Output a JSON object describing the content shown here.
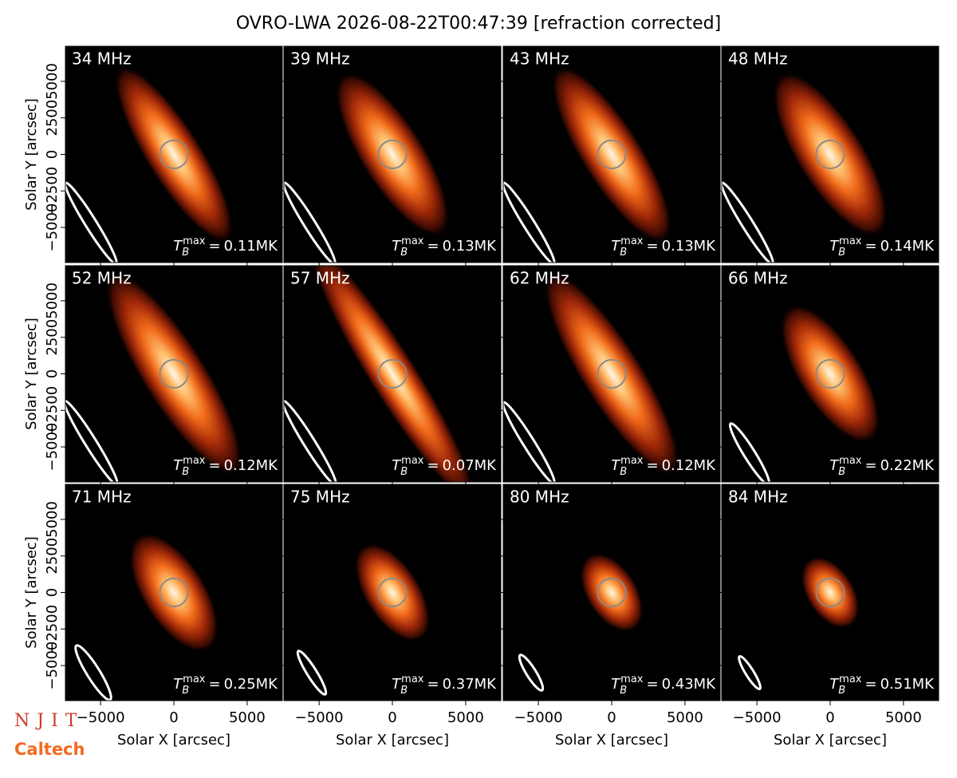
{
  "chart_data": {
    "type": "image_grid",
    "title": "OVRO-LWA 2026-08-22T00:47:39 [refraction corrected]",
    "xlabel": "Solar X [arcsec]",
    "ylabel": "Solar Y [arcsec]",
    "xlim": [
      -7400,
      7400
    ],
    "ylim": [
      -7400,
      7400
    ],
    "xticks": [
      {
        "value": -5000,
        "label": "−5000"
      },
      0,
      5000
    ],
    "yticks": [
      {
        "value": -5000,
        "label": "−5000"
      },
      {
        "value": -2500,
        "label": "−2500"
      },
      0,
      2500,
      5000
    ],
    "annotation": {
      "base": "T",
      "sub": "B",
      "sup": "max",
      "eq": "="
    },
    "panels": [
      {
        "label": "34 MHz",
        "value": 0.11,
        "value_label": "0.11MK"
      },
      {
        "label": "39 MHz",
        "value": 0.13,
        "value_label": "0.13MK"
      },
      {
        "label": "43 MHz",
        "value": 0.13,
        "value_label": "0.13MK"
      },
      {
        "label": "48 MHz",
        "value": 0.14,
        "value_label": "0.14MK"
      },
      {
        "label": "52 MHz",
        "value": 0.12,
        "value_label": "0.12MK"
      },
      {
        "label": "57 MHz",
        "value": 0.07,
        "value_label": "0.07MK"
      },
      {
        "label": "62 MHz",
        "value": 0.12,
        "value_label": "0.12MK"
      },
      {
        "label": "66 MHz",
        "value": 0.22,
        "value_label": "0.22MK"
      },
      {
        "label": "71 MHz",
        "value": 0.25,
        "value_label": "0.25MK"
      },
      {
        "label": "75 MHz",
        "value": 0.37,
        "value_label": "0.37MK"
      },
      {
        "label": "80 MHz",
        "value": 0.43,
        "value_label": "0.43MK"
      },
      {
        "label": "84 MHz",
        "value": 0.51,
        "value_label": "0.51MK"
      }
    ],
    "logos": [
      "NJIT",
      "Caltech"
    ]
  }
}
